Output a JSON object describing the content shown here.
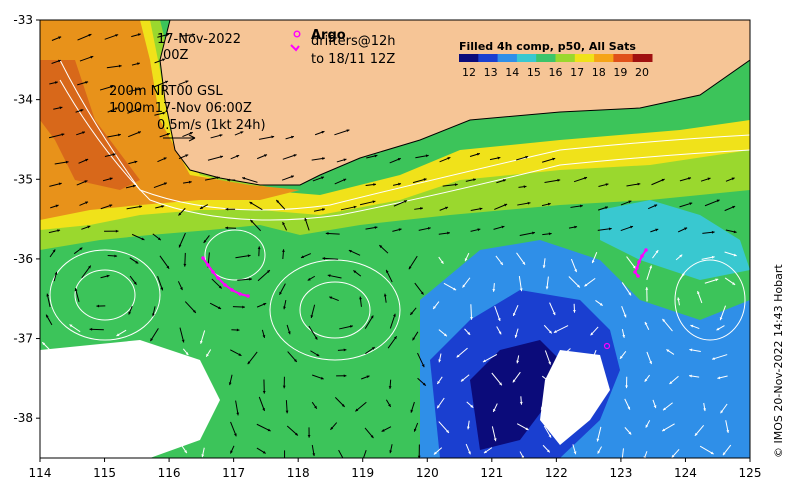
{
  "header": {
    "date_line1": "17-Nov-2022",
    "date_line2": "00Z",
    "argo_label": "Argo",
    "drifters_line1": "drifters@12h",
    "drifters_line2": "to 18/11 12Z",
    "model_line1": "200m  NRT00 GSL",
    "model_line2": "1000m17-Nov 06:00Z",
    "scale_label": "0.5m/s (1kt 24h)"
  },
  "colorbar": {
    "title": "Filled 4h comp, p50, All Sats",
    "ticks": [
      "12",
      "13",
      "14",
      "15",
      "16",
      "17",
      "18",
      "19",
      "20"
    ],
    "colors": [
      "#0b0b7a",
      "#1a3fd0",
      "#2f8fe8",
      "#39c8d0",
      "#3cc46a",
      "#9ad82e",
      "#f0e21a",
      "#f5a418",
      "#e0501a",
      "#a01010"
    ]
  },
  "axes": {
    "x_ticks": [
      "114",
      "115",
      "116",
      "117",
      "118",
      "119",
      "120",
      "121",
      "122",
      "123",
      "124",
      "125"
    ],
    "y_ticks": [
      "-33",
      "-34",
      "-35",
      "-36",
      "-37",
      "-38"
    ],
    "xlim": [
      114,
      125
    ],
    "ylim": [
      -38.5,
      -33
    ]
  },
  "credit": "© IMOS 20-Nov-2022 14:43 Hobart",
  "colors": {
    "land": "#f6c596",
    "coastline": "#000000",
    "argo": "#ff00ff",
    "vectors_dark": "#000000",
    "vectors_light": "#ffffff"
  }
}
